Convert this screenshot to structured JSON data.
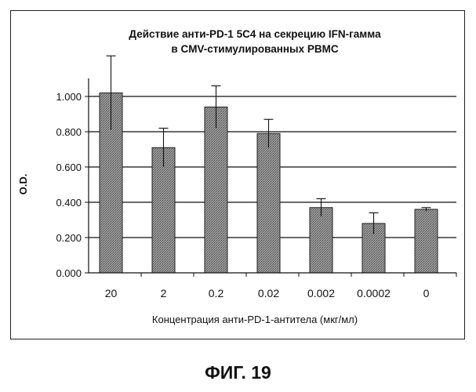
{
  "chart_data": {
    "type": "bar",
    "title_line1": "Действие анти-PD-1 5C4 на секрецию IFN-гамма",
    "title_line2": "в CMV-стимулированных PBMC",
    "categories": [
      "20",
      "2",
      "0.2",
      "0.02",
      "0.002",
      "0.0002",
      "0"
    ],
    "values": [
      1.02,
      0.71,
      0.94,
      0.79,
      0.37,
      0.28,
      0.36
    ],
    "errors": [
      0.21,
      0.11,
      0.12,
      0.08,
      0.05,
      0.06,
      0.01
    ],
    "ylabel": "O.D.",
    "xlabel": "Концентрация анти-PD-1-антитела (мкг/мл)",
    "ylim": [
      0,
      1.0
    ],
    "yticks": [
      "0.000",
      "0.200",
      "0.400",
      "0.600",
      "0.800",
      "1.000"
    ],
    "grid": true,
    "legend": false,
    "bar_color": "#8c8c8c"
  },
  "caption": "ФИГ. 19"
}
